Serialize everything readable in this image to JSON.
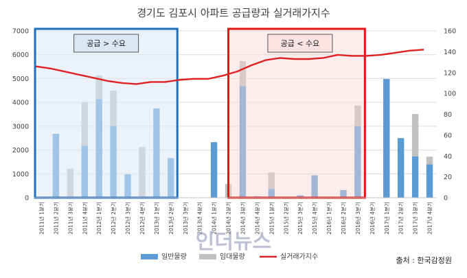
{
  "chart_data": {
    "type": "bar",
    "title": "경기도 김포시 아파트 공급량과 실거래가지수",
    "categories": [
      "2011년 1분기",
      "2011년 2분기",
      "2011년 3분기",
      "2011년 4분기",
      "2012년 1분기",
      "2012년 2분기",
      "2012년 3분기",
      "2012년 4분기",
      "2013년 1분기",
      "2013년 2분기",
      "2013년 3분기",
      "2013년 4분기",
      "2014년 1분기",
      "2014년 2분기",
      "2014년 3분기",
      "2014년 4분기",
      "2015년 1분기",
      "2015년 2분기",
      "2015년 3분기",
      "2015년 4분기",
      "2016년 1분기",
      "2016년 2분기",
      "2016년 3분기",
      "2016년 4분기",
      "2017년 1분기",
      "2017년 2분기",
      "2017년 3분기",
      "2017년 4분기"
    ],
    "series": [
      {
        "name": "일반물량",
        "axis": "left",
        "color": "#5b9bd5",
        "values": [
          0,
          2680,
          0,
          2180,
          4130,
          3010,
          980,
          0,
          3750,
          1660,
          0,
          0,
          2330,
          0,
          4680,
          60,
          370,
          0,
          100,
          940,
          0,
          320,
          3000,
          0,
          4980,
          2500,
          1730,
          1400
        ]
      },
      {
        "name": "임대물량",
        "axis": "left",
        "color": "#c0c0c0",
        "values": [
          0,
          0,
          1220,
          1830,
          1000,
          1480,
          0,
          2130,
          0,
          0,
          0,
          0,
          0,
          580,
          1050,
          0,
          690,
          0,
          0,
          0,
          0,
          0,
          870,
          0,
          0,
          0,
          1780,
          320
        ]
      },
      {
        "name": "실거래가지수",
        "axis": "right",
        "type": "line",
        "color": "#e02020",
        "values": [
          126,
          124,
          121,
          118,
          115,
          112,
          110,
          109,
          111,
          111,
          113,
          114,
          114,
          117,
          121,
          127,
          132,
          134,
          133,
          133,
          134,
          137,
          136,
          136,
          137,
          139,
          141,
          142
        ]
      }
    ],
    "ylim_left": [
      0,
      7000
    ],
    "yticks_left": [
      "0",
      "1000",
      "2000",
      "3000",
      "4000",
      "5000",
      "6000",
      "7000"
    ],
    "ylim_right": [
      0,
      160
    ],
    "yticks_right": [
      "0",
      "20",
      "40",
      "60",
      "80",
      "100",
      "120",
      "140",
      "160"
    ],
    "annotations": {
      "left_box": "공급 > 수요",
      "right_box": "공급 < 수요"
    },
    "legend_position": "bottom"
  },
  "source_text": "출처 : 한국감정원",
  "watermark_text": "인더뉴스"
}
